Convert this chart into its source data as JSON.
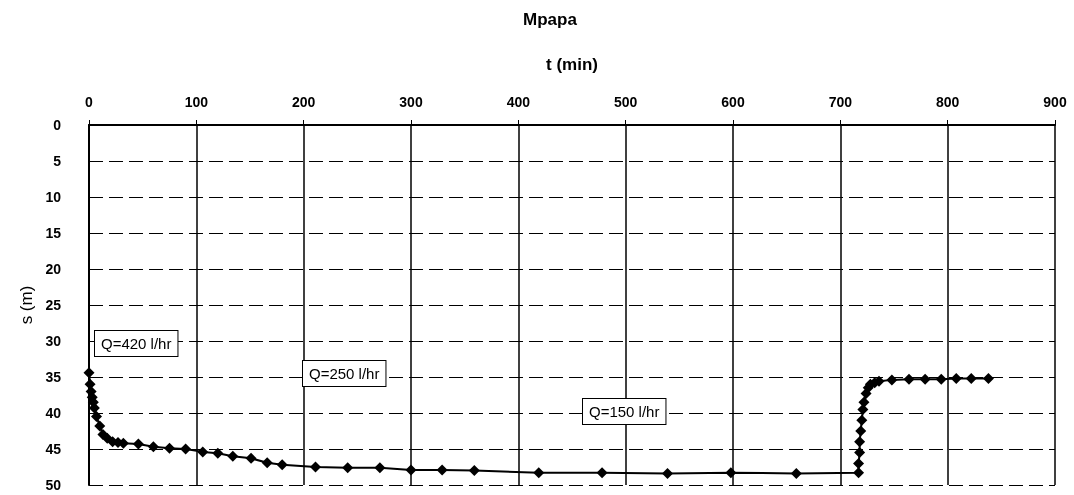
{
  "chart_data": {
    "type": "line",
    "title": "Mpapa",
    "xlabel": "t (min)",
    "ylabel": "s (m)",
    "x": [
      0,
      1,
      2,
      3,
      4,
      5,
      7,
      10,
      13,
      17,
      22,
      27,
      32,
      46,
      60,
      75,
      90,
      106,
      120,
      134,
      151,
      166,
      180,
      211,
      241,
      271,
      300,
      329,
      359,
      419,
      478,
      539,
      598,
      659,
      717,
      717,
      718,
      718,
      719,
      720,
      721,
      722,
      724,
      726,
      728,
      732,
      736,
      748,
      764,
      779,
      794,
      808,
      822,
      838
    ],
    "series": [
      {
        "color": "#000000",
        "values": [
          34.4,
          36,
          37,
          37.8,
          38.5,
          39.3,
          40.5,
          41.8,
          43,
          43.5,
          44,
          44.1,
          44.2,
          44.3,
          44.7,
          44.9,
          45,
          45.4,
          45.6,
          46,
          46.3,
          46.9,
          47.2,
          47.5,
          47.6,
          47.6,
          47.9,
          47.9,
          48,
          48.3,
          48.3,
          48.4,
          48.3,
          48.4,
          48.3,
          47,
          45.5,
          44,
          42.5,
          41,
          39.5,
          38.5,
          37.3,
          36.5,
          36,
          35.8,
          35.6,
          35.4,
          35.3,
          35.3,
          35.3,
          35.2,
          35.2,
          35.2
        ]
      }
    ],
    "xlim": [
      0,
      900
    ],
    "xticks": [
      0,
      100,
      200,
      300,
      400,
      500,
      600,
      700,
      800,
      900
    ],
    "ylim": [
      50,
      0
    ],
    "yticks": [
      0,
      5,
      10,
      15,
      20,
      25,
      30,
      35,
      40,
      45,
      50
    ],
    "grid": true,
    "marker": "diamond",
    "line_style": "solid",
    "annotations": [
      "Q=420 l/hr",
      "Q=250 l/hr",
      "Q=150 l/hr"
    ]
  }
}
